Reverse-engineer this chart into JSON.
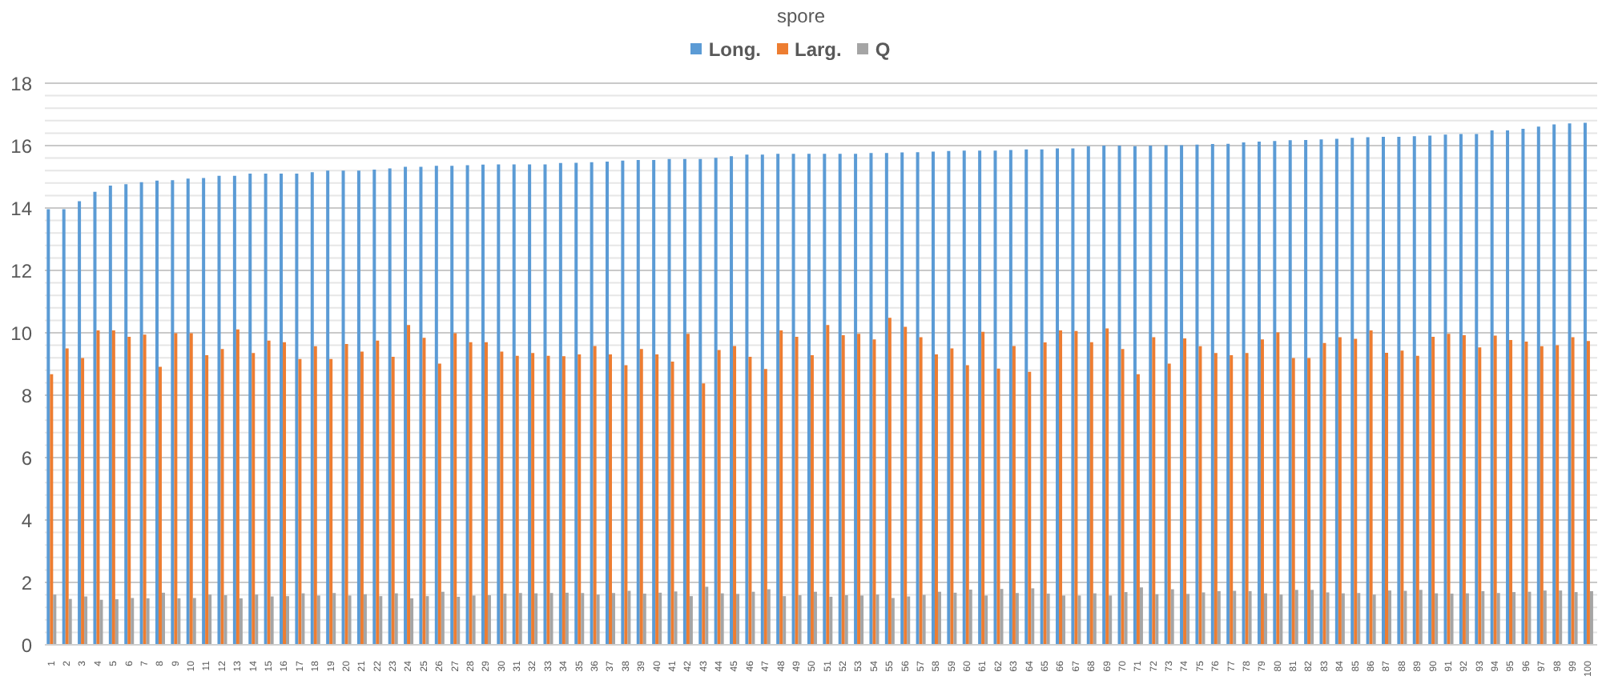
{
  "chart_data": {
    "type": "bar",
    "title": "spore",
    "categories": [
      "1",
      "2",
      "3",
      "4",
      "5",
      "6",
      "7",
      "8",
      "9",
      "10",
      "11",
      "12",
      "13",
      "14",
      "15",
      "16",
      "17",
      "18",
      "19",
      "20",
      "21",
      "22",
      "23",
      "24",
      "25",
      "26",
      "27",
      "28",
      "29",
      "30",
      "31",
      "32",
      "33",
      "34",
      "35",
      "36",
      "37",
      "38",
      "39",
      "40",
      "41",
      "42",
      "43",
      "44",
      "45",
      "46",
      "47",
      "48",
      "49",
      "50",
      "51",
      "52",
      "53",
      "54",
      "55",
      "56",
      "57",
      "58",
      "59",
      "60",
      "61",
      "62",
      "63",
      "64",
      "65",
      "66",
      "67",
      "68",
      "69",
      "70",
      "71",
      "72",
      "73",
      "74",
      "75",
      "76",
      "77",
      "78",
      "79",
      "80",
      "81",
      "82",
      "83",
      "84",
      "85",
      "86",
      "87",
      "88",
      "89",
      "90",
      "91",
      "92",
      "93",
      "94",
      "95",
      "96",
      "97",
      "98",
      "99",
      "100"
    ],
    "series": [
      {
        "name": "Long.",
        "color": "#5b9bd5",
        "values": [
          13.96,
          13.96,
          14.22,
          14.52,
          14.72,
          14.76,
          14.83,
          14.88,
          14.89,
          14.94,
          14.96,
          15.03,
          15.03,
          15.1,
          15.1,
          15.1,
          15.1,
          15.15,
          15.2,
          15.2,
          15.2,
          15.23,
          15.27,
          15.32,
          15.32,
          15.35,
          15.35,
          15.37,
          15.39,
          15.4,
          15.4,
          15.4,
          15.4,
          15.44,
          15.45,
          15.47,
          15.49,
          15.52,
          15.54,
          15.54,
          15.57,
          15.57,
          15.57,
          15.61,
          15.66,
          15.71,
          15.71,
          15.74,
          15.74,
          15.74,
          15.74,
          15.74,
          15.74,
          15.76,
          15.76,
          15.78,
          15.79,
          15.81,
          15.83,
          15.84,
          15.84,
          15.84,
          15.86,
          15.88,
          15.88,
          15.91,
          15.91,
          15.98,
          16.0,
          16.0,
          15.98,
          16.0,
          16.01,
          16.01,
          16.03,
          16.05,
          16.06,
          16.1,
          16.13,
          16.15,
          16.17,
          16.18,
          16.2,
          16.22,
          16.25,
          16.27,
          16.28,
          16.28,
          16.3,
          16.32,
          16.35,
          16.37,
          16.37,
          16.49,
          16.49,
          16.54,
          16.61,
          16.68,
          16.71,
          16.73
        ]
      },
      {
        "name": "Larg.",
        "color": "#ed7d31",
        "values": [
          8.67,
          9.5,
          9.19,
          10.08,
          10.08,
          9.87,
          9.94,
          8.91,
          9.99,
          9.99,
          9.28,
          9.48,
          10.11,
          9.35,
          9.75,
          9.7,
          9.16,
          9.57,
          9.16,
          9.64,
          9.4,
          9.75,
          9.23,
          10.25,
          9.84,
          9.01,
          9.99,
          9.7,
          9.7,
          9.4,
          9.26,
          9.35,
          9.26,
          9.25,
          9.31,
          9.58,
          9.31,
          8.96,
          9.48,
          9.31,
          9.08,
          9.97,
          8.38,
          9.45,
          9.58,
          9.23,
          8.84,
          10.08,
          9.87,
          9.28,
          10.25,
          9.92,
          9.97,
          9.79,
          10.48,
          10.19,
          9.86,
          9.31,
          9.5,
          8.96,
          10.03,
          8.85,
          9.58,
          8.75,
          9.69,
          10.08,
          10.06,
          9.7,
          10.14,
          9.48,
          8.67,
          9.86,
          9.01,
          9.82,
          9.57,
          9.35,
          9.28,
          9.35,
          9.79,
          10.01,
          9.19,
          9.19,
          9.67,
          9.86,
          9.81,
          10.08,
          9.36,
          9.43,
          9.26,
          9.87,
          9.97,
          9.92,
          9.53,
          9.91,
          9.77,
          9.72,
          9.57,
          9.6,
          9.86,
          9.74
        ]
      },
      {
        "name": "Q",
        "color": "#a5a5a5",
        "values": [
          1.61,
          1.47,
          1.55,
          1.44,
          1.46,
          1.5,
          1.49,
          1.67,
          1.49,
          1.5,
          1.61,
          1.59,
          1.49,
          1.61,
          1.55,
          1.56,
          1.65,
          1.58,
          1.66,
          1.58,
          1.62,
          1.56,
          1.65,
          1.49,
          1.56,
          1.7,
          1.54,
          1.58,
          1.59,
          1.64,
          1.66,
          1.65,
          1.66,
          1.67,
          1.66,
          1.61,
          1.66,
          1.73,
          1.64,
          1.67,
          1.71,
          1.56,
          1.86,
          1.65,
          1.63,
          1.7,
          1.78,
          1.56,
          1.59,
          1.7,
          1.54,
          1.59,
          1.58,
          1.61,
          1.5,
          1.55,
          1.6,
          1.7,
          1.67,
          1.77,
          1.58,
          1.79,
          1.66,
          1.81,
          1.64,
          1.58,
          1.58,
          1.65,
          1.58,
          1.69,
          1.84,
          1.62,
          1.78,
          1.63,
          1.68,
          1.72,
          1.73,
          1.72,
          1.65,
          1.61,
          1.76,
          1.76,
          1.68,
          1.65,
          1.66,
          1.61,
          1.74,
          1.73,
          1.76,
          1.65,
          1.64,
          1.65,
          1.72,
          1.66,
          1.69,
          1.7,
          1.74,
          1.74,
          1.69,
          1.72
        ]
      }
    ],
    "ylim": [
      0,
      18
    ],
    "yticks": [
      0,
      {
        "value": 0.4,
        "label": null
      },
      {
        "value": 0.8,
        "label": null
      },
      {
        "value": 1.2,
        "label": null
      },
      {
        "value": 1.6,
        "label": null
      },
      2,
      {
        "value": 2.4,
        "label": null
      },
      {
        "value": 2.8,
        "label": null
      },
      {
        "value": 3.2,
        "label": null
      },
      {
        "value": 3.6,
        "label": null
      },
      4,
      {
        "value": 4.4,
        "label": null
      },
      {
        "value": 4.8,
        "label": null
      },
      {
        "value": 5.2,
        "label": null
      },
      {
        "value": 5.6,
        "label": null
      },
      6,
      {
        "value": 6.4,
        "label": null
      },
      {
        "value": 6.8,
        "label": null
      },
      {
        "value": 7.2,
        "label": null
      },
      {
        "value": 7.6,
        "label": null
      },
      8,
      {
        "value": 8.4,
        "label": null
      },
      {
        "value": 8.8,
        "label": null
      },
      {
        "value": 9.2,
        "label": null
      },
      {
        "value": 9.6,
        "label": null
      },
      10,
      {
        "value": 10.4,
        "label": null
      },
      {
        "value": 10.8,
        "label": null
      },
      {
        "value": 11.2,
        "label": null
      },
      {
        "value": 11.6,
        "label": null
      },
      12,
      {
        "value": 12.4,
        "label": null
      },
      {
        "value": 12.8,
        "label": null
      },
      {
        "value": 13.2,
        "label": null
      },
      {
        "value": 13.6,
        "label": null
      },
      14,
      {
        "value": 14.4,
        "label": null
      },
      {
        "value": 14.8,
        "label": null
      },
      {
        "value": 15.2,
        "label": null
      },
      {
        "value": 15.6,
        "label": null
      },
      16,
      {
        "value": 16.4,
        "label": null
      },
      {
        "value": 16.8,
        "label": null
      },
      {
        "value": 17.2,
        "label": null
      },
      {
        "value": 17.6,
        "label": null
      },
      18
    ],
    "grid": "y",
    "legend": "top"
  }
}
